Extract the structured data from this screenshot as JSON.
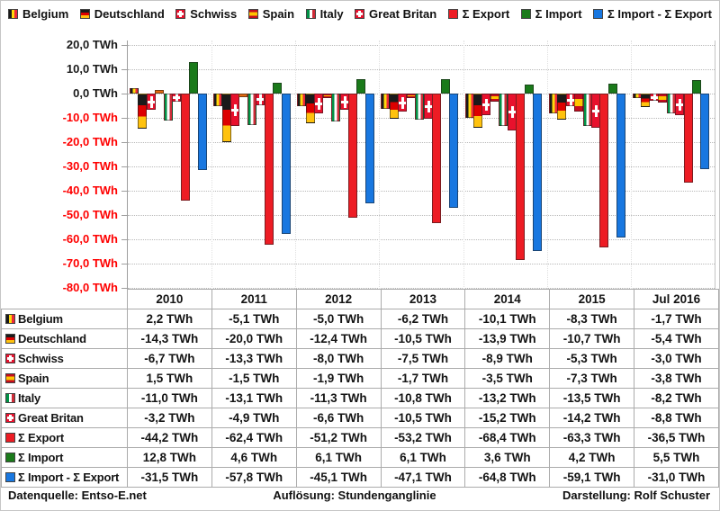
{
  "legend": {
    "items": [
      {
        "key": "belgium",
        "label": "Belgium",
        "style": "flag-belgium"
      },
      {
        "key": "deutschland",
        "label": "Deutschland",
        "style": "flag-deutschland"
      },
      {
        "key": "schwiss",
        "label": "Schwiss",
        "style": "flag-schwiss"
      },
      {
        "key": "spain",
        "label": "Spain",
        "style": "flag-spain"
      },
      {
        "key": "italy",
        "label": "Italy",
        "style": "flag-italy"
      },
      {
        "key": "great-britan",
        "label": "Great Britan",
        "style": "flag-gb"
      },
      {
        "key": "sum-export",
        "label": "Σ Export",
        "style": "fill-export"
      },
      {
        "key": "sum-import",
        "label": "Σ Import",
        "style": "fill-import"
      },
      {
        "key": "import-minus-export",
        "label": "Σ Import  -  Σ Export",
        "style": "fill-diff"
      }
    ]
  },
  "chart": {
    "y_axis": {
      "unit": "TWh",
      "labels": [
        "20,0 TWh",
        "10,0 TWh",
        "0,0 TWh",
        "-10,0 TWh",
        "-20,0 TWh",
        "-30,0 TWh",
        "-40,0 TWh",
        "-50,0 TWh",
        "-60,0 TWh",
        "-70,0 TWh",
        "-80,0 TWh"
      ]
    }
  },
  "chart_data": {
    "type": "bar",
    "title": "",
    "xlabel": "",
    "ylabel": "TWh",
    "ylim": [
      -80,
      20
    ],
    "grid": true,
    "legend_position": "top",
    "categories": [
      "2010",
      "2011",
      "2012",
      "2013",
      "2014",
      "2015",
      "Jul 2016"
    ],
    "series": [
      {
        "key": "belgium",
        "name": "Belgium",
        "style": "flag-belgium",
        "values": [
          2.2,
          -5.1,
          -5.0,
          -6.2,
          -10.1,
          -8.3,
          -1.7
        ]
      },
      {
        "key": "deutschland",
        "name": "Deutschland",
        "style": "flag-deutschland",
        "values": [
          -14.3,
          -20.0,
          -12.4,
          -10.5,
          -13.9,
          -10.7,
          -5.4
        ]
      },
      {
        "key": "schwiss",
        "name": "Schwiss",
        "style": "flag-schwiss",
        "values": [
          -6.7,
          -13.3,
          -8.0,
          -7.5,
          -8.9,
          -5.3,
          -3.0
        ]
      },
      {
        "key": "spain",
        "name": "Spain",
        "style": "flag-spain",
        "values": [
          1.5,
          -1.5,
          -1.9,
          -1.7,
          -3.5,
          -7.3,
          -3.8
        ]
      },
      {
        "key": "italy",
        "name": "Italy",
        "style": "flag-italy",
        "values": [
          -11.0,
          -13.1,
          -11.3,
          -10.8,
          -13.2,
          -13.5,
          -8.2
        ]
      },
      {
        "key": "great-britan",
        "name": "Great Britan",
        "style": "flag-gb",
        "values": [
          -3.2,
          -4.9,
          -6.6,
          -10.5,
          -15.2,
          -14.2,
          -8.8
        ]
      },
      {
        "key": "sum-export",
        "name": "Σ Export",
        "style": "fill-export",
        "values": [
          -44.2,
          -62.4,
          -51.2,
          -53.2,
          -68.4,
          -63.3,
          -36.5
        ]
      },
      {
        "key": "sum-import",
        "name": "Σ Import",
        "style": "fill-import",
        "values": [
          12.8,
          4.6,
          6.1,
          6.1,
          3.6,
          4.2,
          5.5
        ]
      },
      {
        "key": "import-minus-export",
        "name": "Σ Import - Σ Export",
        "style": "fill-diff",
        "values": [
          -31.5,
          -57.8,
          -45.1,
          -47.1,
          -64.8,
          -59.1,
          -31.0
        ]
      }
    ]
  },
  "table": {
    "header": [
      "",
      "2010",
      "2011",
      "2012",
      "2013",
      "2014",
      "2015",
      "Jul 2016"
    ],
    "rows": [
      {
        "key": "belgium",
        "label": "Belgium",
        "style": "flag-belgium",
        "values": [
          "2,2 TWh",
          "-5,1 TWh",
          "-5,0 TWh",
          "-6,2 TWh",
          "-10,1 TWh",
          "-8,3 TWh",
          "-1,7 TWh"
        ]
      },
      {
        "key": "deutschland",
        "label": "Deutschland",
        "style": "flag-deutschland",
        "values": [
          "-14,3 TWh",
          "-20,0 TWh",
          "-12,4 TWh",
          "-10,5 TWh",
          "-13,9 TWh",
          "-10,7 TWh",
          "-5,4 TWh"
        ]
      },
      {
        "key": "schwiss",
        "label": "Schwiss",
        "style": "flag-schwiss",
        "values": [
          "-6,7 TWh",
          "-13,3 TWh",
          "-8,0 TWh",
          "-7,5 TWh",
          "-8,9 TWh",
          "-5,3 TWh",
          "-3,0 TWh"
        ]
      },
      {
        "key": "spain",
        "label": "Spain",
        "style": "flag-spain",
        "values": [
          "1,5 TWh",
          "-1,5 TWh",
          "-1,9 TWh",
          "-1,7 TWh",
          "-3,5 TWh",
          "-7,3 TWh",
          "-3,8 TWh"
        ]
      },
      {
        "key": "italy",
        "label": "Italy",
        "style": "flag-italy",
        "values": [
          "-11,0 TWh",
          "-13,1 TWh",
          "-11,3 TWh",
          "-10,8 TWh",
          "-13,2 TWh",
          "-13,5 TWh",
          "-8,2 TWh"
        ]
      },
      {
        "key": "great-britan",
        "label": "Great Britan",
        "style": "flag-gb",
        "values": [
          "-3,2 TWh",
          "-4,9 TWh",
          "-6,6 TWh",
          "-10,5 TWh",
          "-15,2 TWh",
          "-14,2 TWh",
          "-8,8 TWh"
        ]
      },
      {
        "key": "sum-export",
        "label": "Σ Export",
        "style": "fill-export",
        "values": [
          "-44,2 TWh",
          "-62,4 TWh",
          "-51,2 TWh",
          "-53,2 TWh",
          "-68,4 TWh",
          "-63,3 TWh",
          "-36,5 TWh"
        ]
      },
      {
        "key": "sum-import",
        "label": "Σ Import",
        "style": "fill-import",
        "values": [
          "12,8 TWh",
          "4,6 TWh",
          "6,1 TWh",
          "6,1 TWh",
          "3,6 TWh",
          "4,2 TWh",
          "5,5 TWh"
        ]
      },
      {
        "key": "import-minus-export",
        "label": "Σ Import  -  Σ Export",
        "style": "fill-diff",
        "values": [
          "-31,5 TWh",
          "-57,8 TWh",
          "-45,1 TWh",
          "-47,1 TWh",
          "-64,8 TWh",
          "-59,1 TWh",
          "-31,0 TWh"
        ]
      }
    ]
  },
  "footer": {
    "left": "Datenquelle: Entso-E.net",
    "center": "Auflösung: Stundenganglinie",
    "right": "Darstellung: Rolf Schuster"
  },
  "colors": {
    "export_red": "#ED1C24",
    "import_green": "#1A7A1A",
    "diff_blue": "#1877E0",
    "axis_negative": "#FF0000",
    "axis_positive": "#1a1a1a",
    "gridline": "#b8b8b8"
  }
}
